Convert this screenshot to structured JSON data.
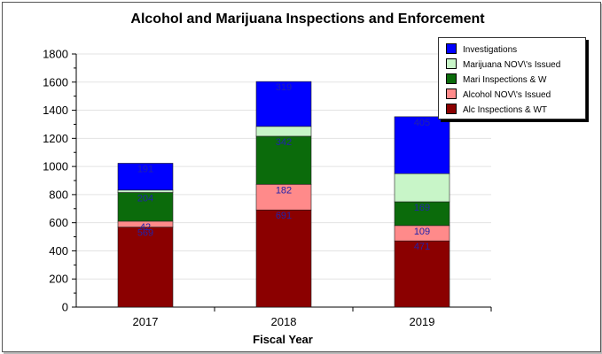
{
  "chart_data": {
    "type": "bar",
    "stacked": true,
    "title": "Alcohol and Marijuana Inspections and Enforcement",
    "xlabel": "Fiscal Year",
    "ylabel": "",
    "categories": [
      "2017",
      "2018",
      "2019"
    ],
    "ylim": [
      0,
      1800
    ],
    "yticks": [
      0,
      200,
      400,
      600,
      800,
      1000,
      1200,
      1400,
      1600,
      1800
    ],
    "grid": true,
    "legend_position": "top-right",
    "series": [
      {
        "name": "Alc Inspections & WT",
        "color": "#8b0000",
        "values": [
          569,
          691,
          471
        ],
        "labels": [
          "569",
          "691",
          "471"
        ]
      },
      {
        "name": "Alcohol NOV\\'s Issued",
        "color": "#ff8a8a",
        "values": [
          42,
          182,
          109
        ],
        "labels": [
          "42",
          "182",
          "109"
        ]
      },
      {
        "name": "Mari Inspections & W",
        "color": "#0b6b0b",
        "values": [
          204,
          342,
          169
        ],
        "labels": [
          "204",
          "342",
          "169"
        ]
      },
      {
        "name": "Marijuana NOV\\'s Issued",
        "color": "#c8f5c8",
        "values": [
          17,
          70,
          200
        ],
        "labels": [
          "",
          "",
          ""
        ]
      },
      {
        "name": "Investigations",
        "color": "#0000ff",
        "values": [
          191,
          319,
          405
        ],
        "labels": [
          "191",
          "319",
          "405"
        ]
      }
    ]
  }
}
